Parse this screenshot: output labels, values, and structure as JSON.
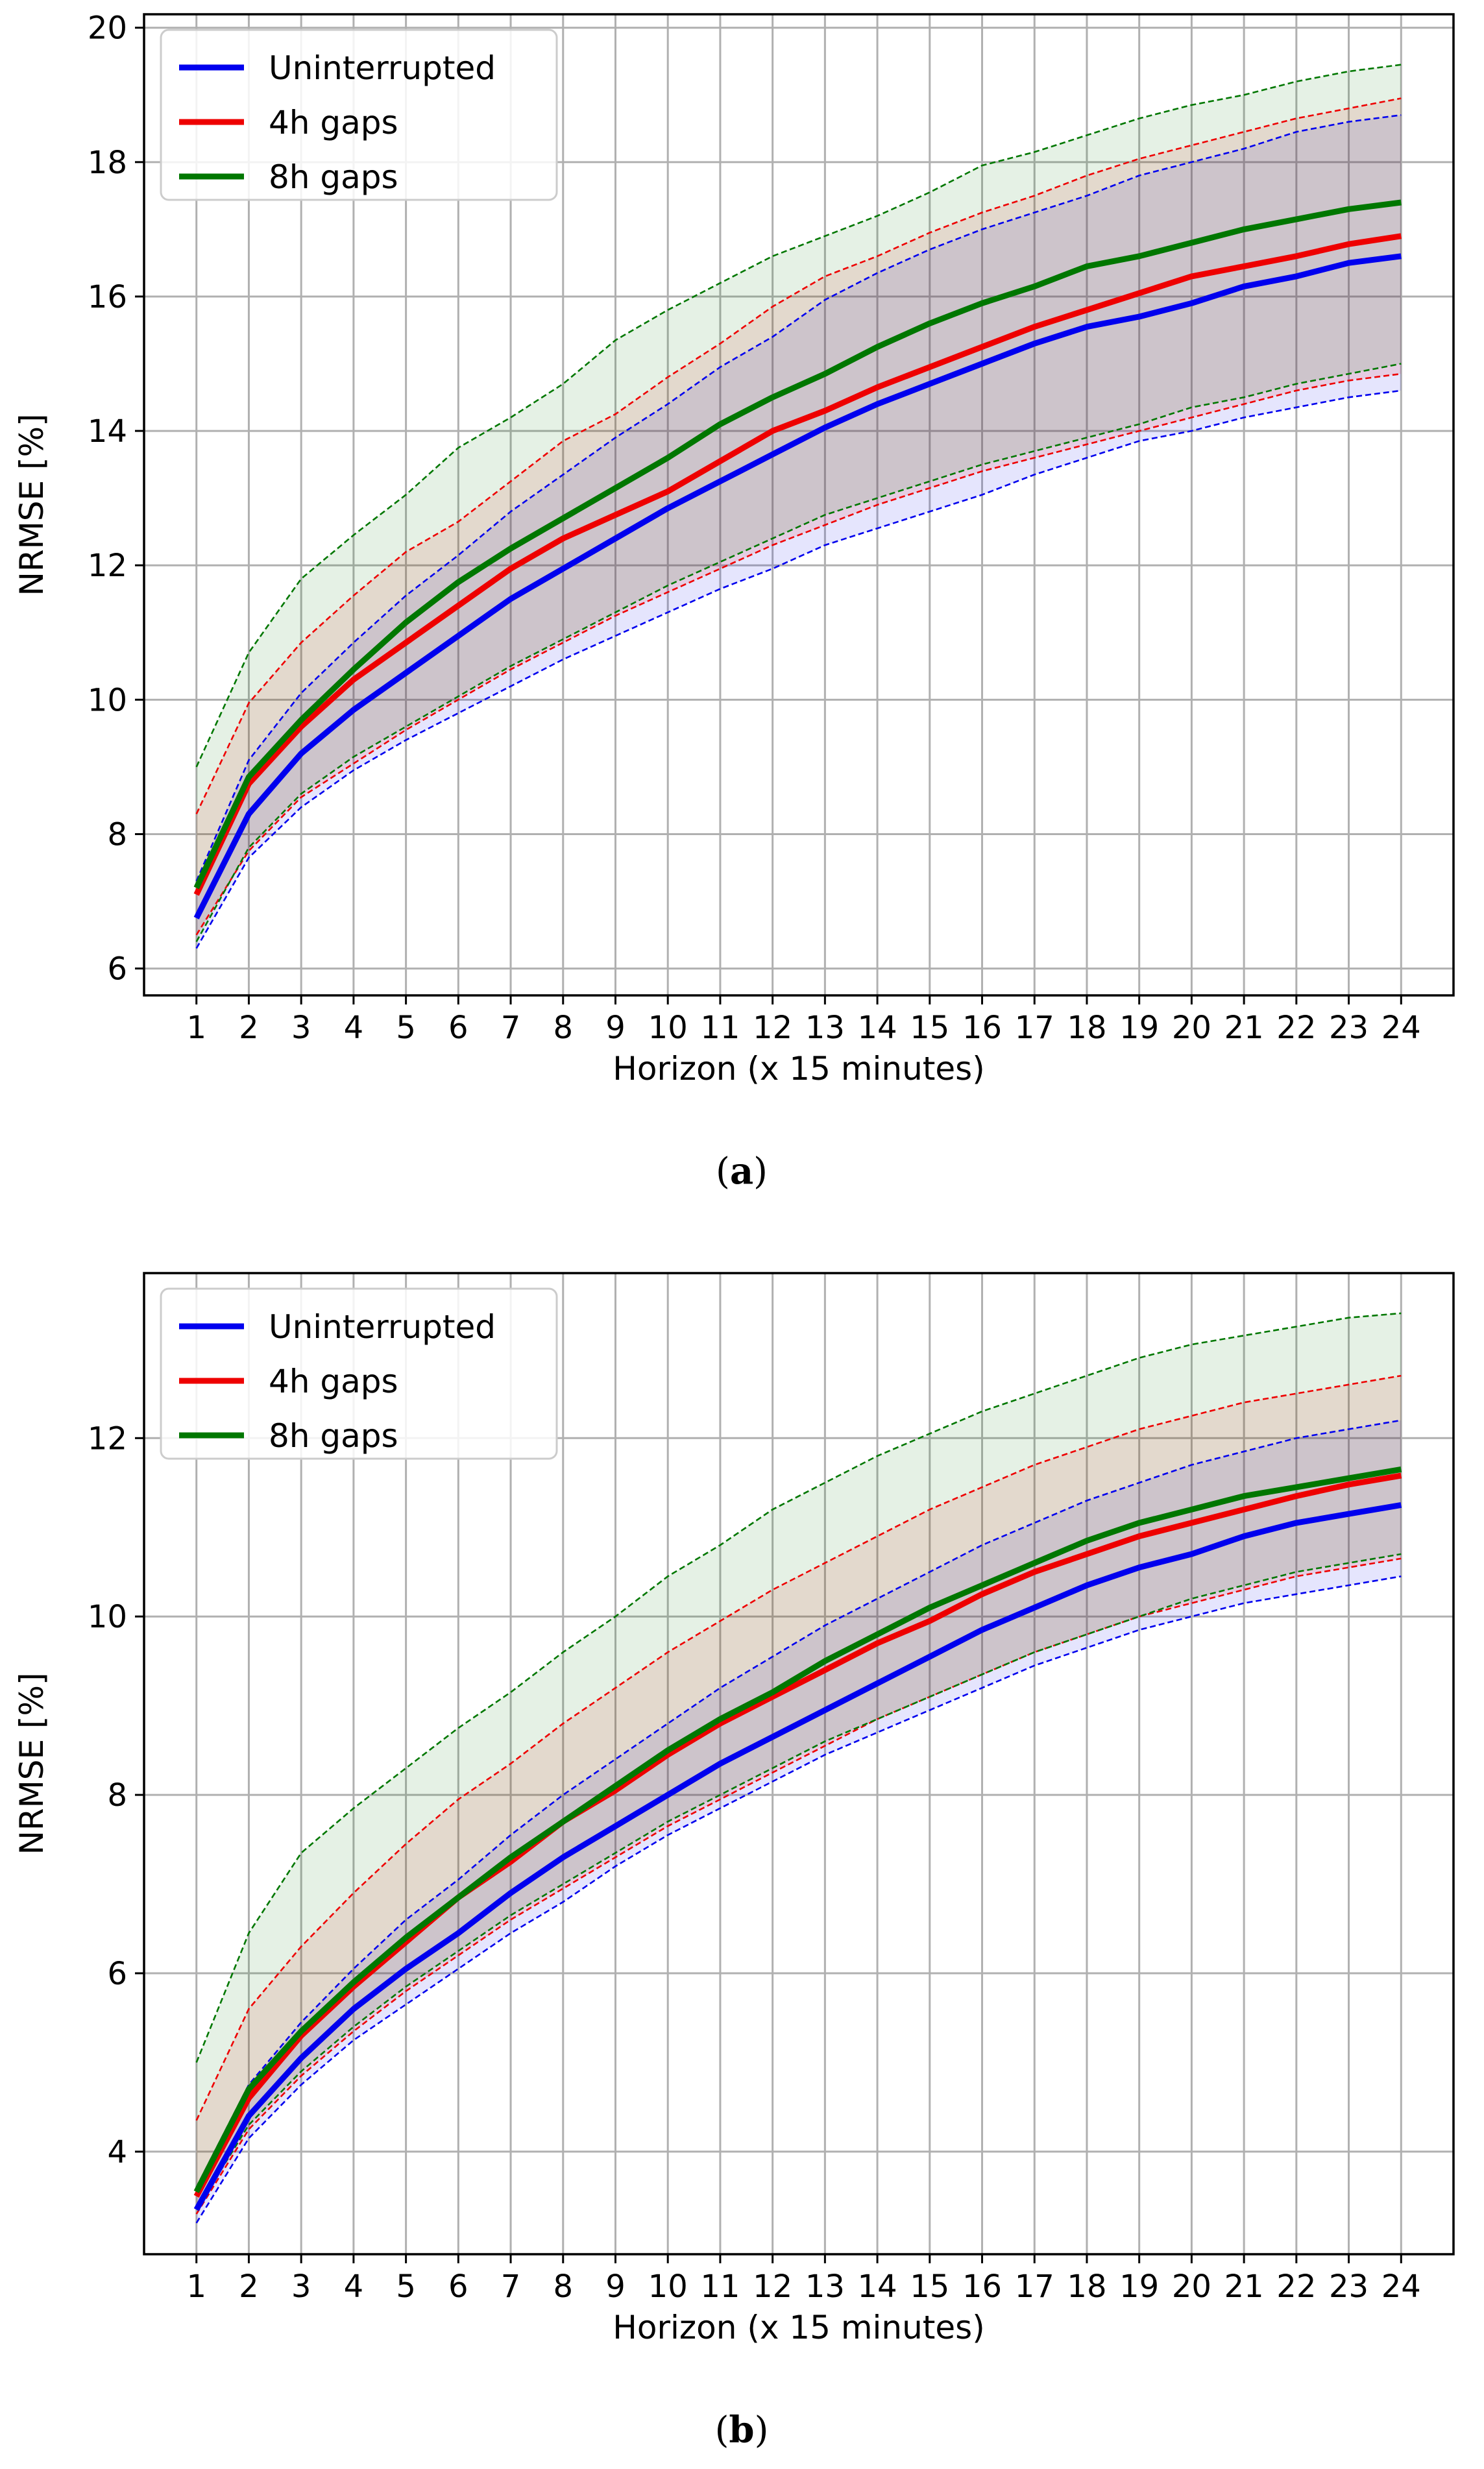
{
  "figure": {
    "series_colors": {
      "Uninterrupted": "#0000ee",
      "4h gaps": "#ee0000",
      "8h gaps": "#007700"
    }
  },
  "chart_data": [
    {
      "type": "line",
      "caption_letter": "a",
      "xlabel": "Horizon (x 15 minutes)",
      "ylabel": "NRMSE [%]",
      "xlim": [
        0,
        25
      ],
      "ylim": [
        5.6,
        20.2
      ],
      "yticks": [
        6,
        8,
        10,
        12,
        14,
        16,
        18,
        20
      ],
      "xticks": [
        1,
        2,
        3,
        4,
        5,
        6,
        7,
        8,
        9,
        10,
        11,
        12,
        13,
        14,
        15,
        16,
        17,
        18,
        19,
        20,
        21,
        22,
        23,
        24
      ],
      "grid": true,
      "legend_position": "top-left",
      "x": [
        1,
        2,
        3,
        4,
        5,
        6,
        7,
        8,
        9,
        10,
        11,
        12,
        13,
        14,
        15,
        16,
        17,
        18,
        19,
        20,
        21,
        22,
        23,
        24
      ],
      "series": [
        {
          "name": "Uninterrupted",
          "color": "#0000ee",
          "values": [
            6.75,
            8.3,
            9.2,
            9.85,
            10.4,
            10.95,
            11.5,
            11.95,
            12.4,
            12.85,
            13.25,
            13.65,
            14.05,
            14.4,
            14.7,
            15.0,
            15.3,
            15.55,
            15.7,
            15.9,
            16.15,
            16.3,
            16.5,
            16.6
          ],
          "upper": [
            7.3,
            9.1,
            10.1,
            10.85,
            11.55,
            12.15,
            12.8,
            13.35,
            13.9,
            14.4,
            14.95,
            15.4,
            15.95,
            16.35,
            16.7,
            17.0,
            17.25,
            17.5,
            17.8,
            18.0,
            18.2,
            18.45,
            18.6,
            18.7
          ],
          "lower": [
            6.3,
            7.65,
            8.4,
            8.95,
            9.4,
            9.8,
            10.2,
            10.6,
            10.95,
            11.3,
            11.65,
            11.95,
            12.3,
            12.55,
            12.8,
            13.05,
            13.35,
            13.6,
            13.85,
            14.0,
            14.2,
            14.35,
            14.5,
            14.6
          ]
        },
        {
          "name": "4h gaps",
          "color": "#ee0000",
          "values": [
            7.1,
            8.75,
            9.6,
            10.3,
            10.85,
            11.4,
            11.95,
            12.4,
            12.75,
            13.1,
            13.55,
            14.0,
            14.3,
            14.65,
            14.95,
            15.25,
            15.55,
            15.8,
            16.05,
            16.3,
            16.45,
            16.6,
            16.78,
            16.9
          ],
          "upper": [
            8.3,
            9.95,
            10.85,
            11.55,
            12.2,
            12.65,
            13.25,
            13.85,
            14.25,
            14.8,
            15.3,
            15.85,
            16.3,
            16.6,
            16.95,
            17.25,
            17.5,
            17.8,
            18.05,
            18.25,
            18.45,
            18.65,
            18.8,
            18.95
          ],
          "lower": [
            6.5,
            7.75,
            8.55,
            9.05,
            9.55,
            10.0,
            10.45,
            10.85,
            11.25,
            11.6,
            11.95,
            12.3,
            12.6,
            12.9,
            13.15,
            13.4,
            13.6,
            13.8,
            14.0,
            14.2,
            14.4,
            14.6,
            14.75,
            14.85
          ]
        },
        {
          "name": "8h gaps",
          "color": "#007700",
          "values": [
            7.2,
            8.85,
            9.7,
            10.45,
            11.15,
            11.75,
            12.25,
            12.7,
            13.15,
            13.6,
            14.1,
            14.5,
            14.85,
            15.25,
            15.6,
            15.9,
            16.15,
            16.45,
            16.6,
            16.8,
            17.0,
            17.15,
            17.3,
            17.4
          ],
          "upper": [
            9.0,
            10.7,
            11.8,
            12.45,
            13.05,
            13.75,
            14.2,
            14.7,
            15.35,
            15.8,
            16.2,
            16.6,
            16.9,
            17.2,
            17.55,
            17.95,
            18.15,
            18.4,
            18.65,
            18.85,
            19.0,
            19.2,
            19.35,
            19.45
          ],
          "lower": [
            6.4,
            7.8,
            8.6,
            9.15,
            9.6,
            10.05,
            10.5,
            10.9,
            11.3,
            11.7,
            12.05,
            12.4,
            12.75,
            13.0,
            13.25,
            13.5,
            13.7,
            13.9,
            14.1,
            14.35,
            14.5,
            14.7,
            14.85,
            15.0
          ]
        }
      ]
    },
    {
      "type": "line",
      "caption_letter": "b",
      "xlabel": "Horizon (x 15 minutes)",
      "ylabel": "NRMSE [%]",
      "xlim": [
        0,
        25
      ],
      "ylim": [
        2.85,
        13.85
      ],
      "yticks": [
        4,
        6,
        8,
        10,
        12
      ],
      "xticks": [
        1,
        2,
        3,
        4,
        5,
        6,
        7,
        8,
        9,
        10,
        11,
        12,
        13,
        14,
        15,
        16,
        17,
        18,
        19,
        20,
        21,
        22,
        23,
        24
      ],
      "grid": true,
      "legend_position": "top-left",
      "x": [
        1,
        2,
        3,
        4,
        5,
        6,
        7,
        8,
        9,
        10,
        11,
        12,
        13,
        14,
        15,
        16,
        17,
        18,
        19,
        20,
        21,
        22,
        23,
        24
      ],
      "series": [
        {
          "name": "Uninterrupted",
          "color": "#0000ee",
          "values": [
            3.35,
            4.4,
            5.05,
            5.6,
            6.05,
            6.45,
            6.9,
            7.3,
            7.65,
            8.0,
            8.35,
            8.65,
            8.95,
            9.25,
            9.55,
            9.85,
            10.1,
            10.35,
            10.55,
            10.7,
            10.9,
            11.05,
            11.15,
            11.25
          ],
          "upper": [
            3.6,
            4.75,
            5.45,
            6.05,
            6.6,
            7.05,
            7.55,
            8.0,
            8.4,
            8.8,
            9.2,
            9.55,
            9.9,
            10.2,
            10.5,
            10.8,
            11.05,
            11.3,
            11.5,
            11.7,
            11.85,
            12.0,
            12.1,
            12.2
          ],
          "lower": [
            3.2,
            4.15,
            4.75,
            5.25,
            5.65,
            6.05,
            6.45,
            6.8,
            7.2,
            7.55,
            7.85,
            8.15,
            8.45,
            8.7,
            8.95,
            9.2,
            9.45,
            9.65,
            9.85,
            10.0,
            10.15,
            10.25,
            10.35,
            10.45
          ]
        },
        {
          "name": "4h gaps",
          "color": "#ee0000",
          "values": [
            3.5,
            4.6,
            5.3,
            5.85,
            6.35,
            6.85,
            7.25,
            7.7,
            8.05,
            8.45,
            8.8,
            9.1,
            9.4,
            9.7,
            9.95,
            10.25,
            10.5,
            10.7,
            10.9,
            11.05,
            11.2,
            11.35,
            11.48,
            11.58
          ],
          "upper": [
            4.35,
            5.6,
            6.3,
            6.9,
            7.45,
            7.95,
            8.35,
            8.8,
            9.2,
            9.6,
            9.95,
            10.3,
            10.6,
            10.9,
            11.2,
            11.45,
            11.7,
            11.9,
            12.1,
            12.25,
            12.4,
            12.5,
            12.6,
            12.7
          ],
          "lower": [
            3.3,
            4.25,
            4.85,
            5.35,
            5.8,
            6.2,
            6.6,
            6.95,
            7.3,
            7.65,
            7.95,
            8.25,
            8.55,
            8.85,
            9.1,
            9.35,
            9.6,
            9.8,
            10.0,
            10.15,
            10.3,
            10.45,
            10.55,
            10.65
          ]
        },
        {
          "name": "8h gaps",
          "color": "#007700",
          "values": [
            3.55,
            4.7,
            5.35,
            5.9,
            6.4,
            6.85,
            7.3,
            7.7,
            8.1,
            8.5,
            8.85,
            9.15,
            9.5,
            9.8,
            10.1,
            10.35,
            10.6,
            10.85,
            11.05,
            11.2,
            11.35,
            11.45,
            11.55,
            11.65
          ],
          "upper": [
            5.0,
            6.45,
            7.35,
            7.85,
            8.3,
            8.75,
            9.15,
            9.6,
            10.0,
            10.45,
            10.8,
            11.2,
            11.5,
            11.8,
            12.05,
            12.3,
            12.5,
            12.7,
            12.9,
            13.05,
            13.15,
            13.25,
            13.35,
            13.4
          ],
          "lower": [
            3.35,
            4.3,
            4.9,
            5.4,
            5.85,
            6.25,
            6.65,
            7.0,
            7.35,
            7.7,
            8.0,
            8.3,
            8.6,
            8.85,
            9.1,
            9.35,
            9.6,
            9.8,
            10.0,
            10.2,
            10.35,
            10.5,
            10.6,
            10.7
          ]
        }
      ]
    }
  ]
}
